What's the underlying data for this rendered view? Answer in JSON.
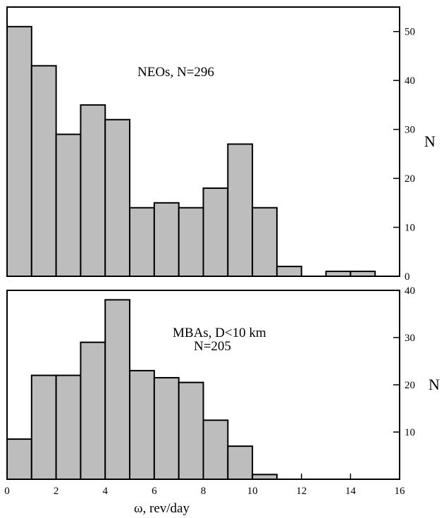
{
  "chart_data": [
    {
      "type": "bar",
      "histogram": true,
      "bin_edges": [
        0,
        1,
        2,
        3,
        4,
        5,
        6,
        7,
        8,
        9,
        10,
        11,
        12,
        13,
        14,
        15
      ],
      "values": [
        51,
        43,
        29,
        35,
        32,
        14,
        15,
        14,
        18,
        27,
        14,
        2,
        0,
        1,
        1
      ],
      "annotation": [
        "NEOs, N=296"
      ],
      "ylabel": "N",
      "xlim": [
        0,
        16
      ],
      "ylim": [
        0,
        55
      ],
      "yticks": [
        0,
        10,
        20,
        30,
        40,
        50
      ],
      "y_axis_side": "right"
    },
    {
      "type": "bar",
      "histogram": true,
      "bin_edges": [
        0,
        1,
        2,
        3,
        4,
        5,
        6,
        7,
        8,
        9,
        10,
        11
      ],
      "values": [
        8.5,
        22,
        22,
        29,
        38,
        23,
        21.5,
        20.5,
        12.5,
        7,
        1
      ],
      "annotation": [
        "MBAs, D<10 km",
        "N=205"
      ],
      "ylabel": "N",
      "xlabel": "ω,  rev/day",
      "xlim": [
        0,
        16
      ],
      "ylim": [
        0,
        40
      ],
      "yticks": [
        10,
        20,
        30,
        40
      ],
      "xticks": [
        0,
        2,
        4,
        6,
        8,
        10,
        12,
        14,
        16
      ],
      "y_axis_side": "right"
    }
  ]
}
